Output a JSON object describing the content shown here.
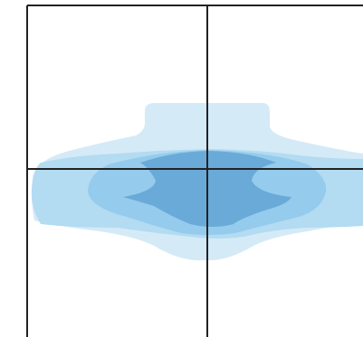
{
  "chart_data": {
    "type": "contour",
    "colors": [
      "#d5eaf7",
      "#b3dbf2",
      "#95cbec",
      "#6aaad8"
    ],
    "grid": true
  }
}
